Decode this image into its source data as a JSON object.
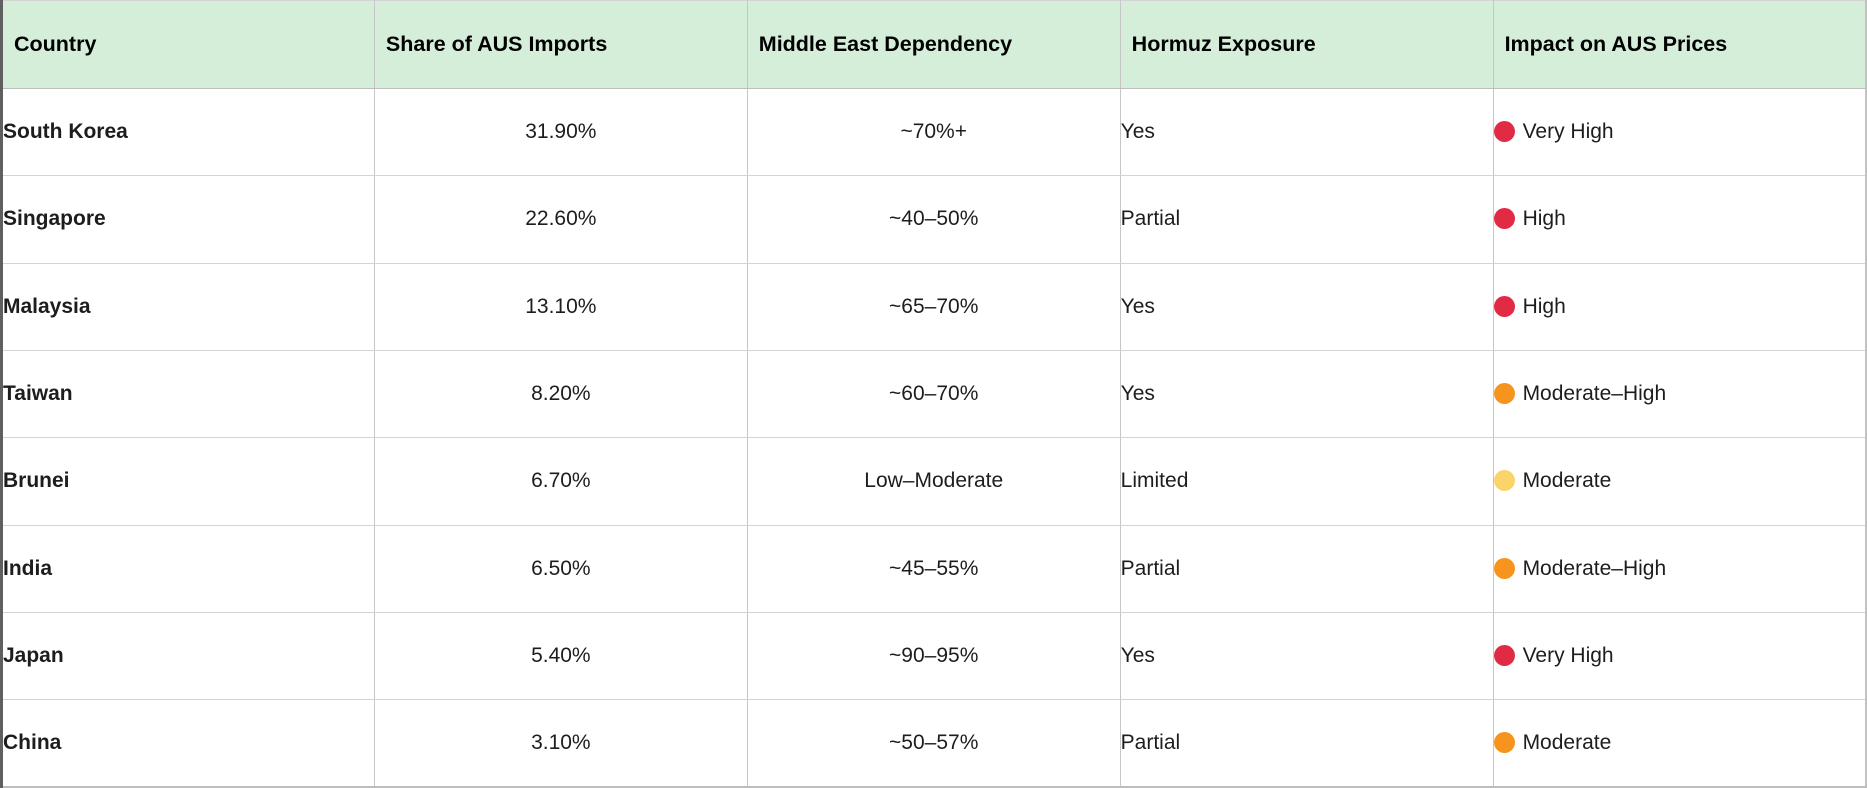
{
  "chart_data": {
    "type": "table",
    "title": "",
    "columns": [
      {
        "key": "country",
        "label": "Country",
        "align": "left"
      },
      {
        "key": "share",
        "label": "Share of AUS Imports",
        "align": "center"
      },
      {
        "key": "dependency",
        "label": "Middle East Dependency",
        "align": "center"
      },
      {
        "key": "hormuz",
        "label": "Hormuz Exposure",
        "align": "left"
      },
      {
        "key": "impact",
        "label": "Impact on AUS Prices",
        "align": "left"
      }
    ],
    "rows": [
      {
        "country": "South Korea",
        "share": "31.90%",
        "dependency": "~70%+",
        "hormuz": "Yes",
        "impact": "Very High",
        "impact_level": "red"
      },
      {
        "country": "Singapore",
        "share": "22.60%",
        "dependency": "~40–50%",
        "hormuz": "Partial",
        "impact": "High",
        "impact_level": "red"
      },
      {
        "country": "Malaysia",
        "share": "13.10%",
        "dependency": "~65–70%",
        "hormuz": "Yes",
        "impact": "High",
        "impact_level": "red"
      },
      {
        "country": "Taiwan",
        "share": "8.20%",
        "dependency": "~60–70%",
        "hormuz": "Yes",
        "impact": "Moderate–High",
        "impact_level": "orange"
      },
      {
        "country": "Brunei",
        "share": "6.70%",
        "dependency": "Low–Moderate",
        "hormuz": "Limited",
        "impact": "Moderate",
        "impact_level": "yellow"
      },
      {
        "country": "India",
        "share": "6.50%",
        "dependency": "~45–55%",
        "hormuz": "Partial",
        "impact": "Moderate–High",
        "impact_level": "orange"
      },
      {
        "country": "Japan",
        "share": "5.40%",
        "dependency": "~90–95%",
        "hormuz": "Yes",
        "impact": "Very High",
        "impact_level": "red"
      },
      {
        "country": "China",
        "share": "3.10%",
        "dependency": "~50–57%",
        "hormuz": "Partial",
        "impact": "Moderate",
        "impact_level": "orange"
      }
    ],
    "share_values_numeric_pct": [
      31.9,
      22.6,
      13.1,
      8.2,
      6.7,
      6.5,
      5.4,
      3.1
    ],
    "legend": "dot color encodes impact severity",
    "layout_hints": {
      "header_row": true,
      "grid": true,
      "columns_equal_width": true
    }
  },
  "colors": {
    "header_bg": "#d4eeda",
    "dot_red": "#e12b45",
    "dot_orange": "#f6941e",
    "dot_yellow": "#fbd36b",
    "grid_line": "#c6c6c6",
    "text": "#1d1d1d"
  }
}
